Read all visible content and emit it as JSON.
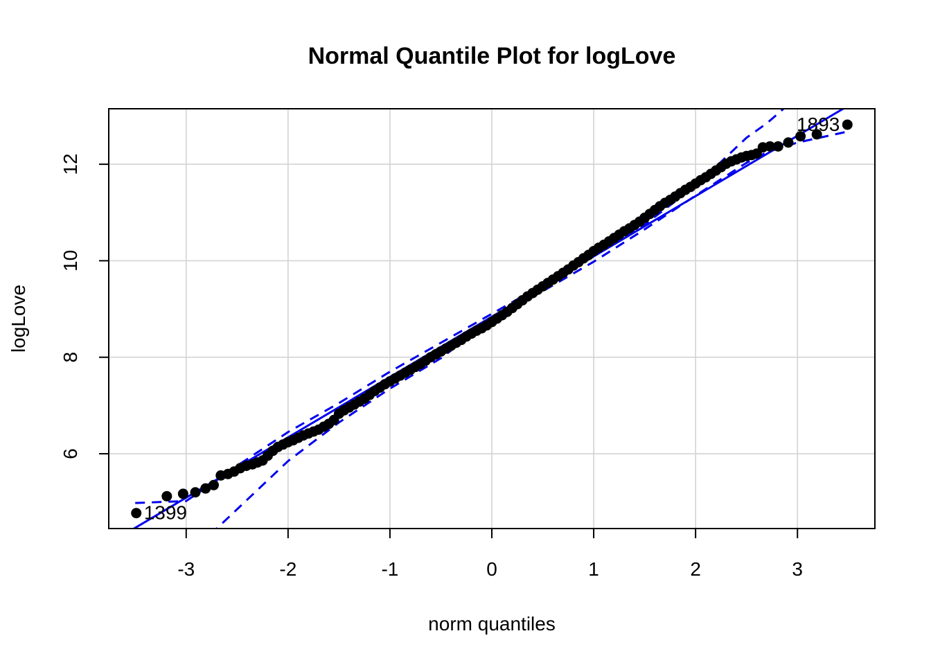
{
  "chart_data": {
    "type": "scatter",
    "title": "Normal Quantile Plot for logLove",
    "xlabel": "norm quantiles",
    "ylabel": "logLove",
    "xlim": [
      -3.76,
      3.76
    ],
    "ylim": [
      4.45,
      13.15
    ],
    "x_ticks": [
      -3,
      -2,
      -1,
      0,
      1,
      2,
      3
    ],
    "y_ticks": [
      6,
      8,
      10,
      12
    ],
    "grid": true,
    "colors": {
      "points": "#000000",
      "reference_line": "#0000ee",
      "envelope": "#0000ee",
      "grid": "#d3d3d3"
    },
    "reference_line": {
      "intercept": 8.84,
      "slope": 1.25
    },
    "envelope": {
      "x": [
        -3.5,
        -3.0,
        -2.7,
        -2.5,
        -2.0,
        -1.5,
        -1.0,
        -0.5,
        0.0,
        0.5,
        1.0,
        1.5,
        2.0,
        2.5,
        2.7,
        3.0,
        3.5
      ],
      "upper": [
        4.98,
        5.02,
        5.45,
        5.75,
        6.45,
        7.05,
        7.7,
        8.3,
        8.9,
        9.5,
        10.1,
        10.75,
        11.55,
        12.55,
        12.85,
        13.4,
        14.2
      ],
      "lower": [
        3.0,
        3.7,
        4.45,
        4.85,
        5.85,
        6.65,
        7.35,
        7.98,
        8.78,
        9.37,
        9.98,
        10.65,
        11.35,
        12.03,
        12.25,
        12.45,
        12.68
      ]
    },
    "points": [
      {
        "x": -3.49,
        "y": 4.77,
        "label": "1399"
      },
      {
        "x": -3.19,
        "y": 5.12
      },
      {
        "x": -3.03,
        "y": 5.17
      },
      {
        "x": -2.91,
        "y": 5.2
      },
      {
        "x": -2.81,
        "y": 5.28
      },
      {
        "x": -2.73,
        "y": 5.35
      },
      {
        "x": -2.66,
        "y": 5.55
      },
      {
        "x": -2.59,
        "y": 5.58
      },
      {
        "x": -2.53,
        "y": 5.63
      },
      {
        "x": -2.47,
        "y": 5.7
      },
      {
        "x": -2.41,
        "y": 5.75
      },
      {
        "x": -2.35,
        "y": 5.78
      },
      {
        "x": -2.3,
        "y": 5.82
      },
      {
        "x": -2.25,
        "y": 5.86
      },
      {
        "x": -2.2,
        "y": 5.96
      },
      {
        "x": -2.15,
        "y": 6.06
      },
      {
        "x": -2.1,
        "y": 6.14
      },
      {
        "x": -2.05,
        "y": 6.19
      },
      {
        "x": -2.0,
        "y": 6.24
      },
      {
        "x": -1.95,
        "y": 6.28
      },
      {
        "x": -1.9,
        "y": 6.33
      },
      {
        "x": -1.85,
        "y": 6.38
      },
      {
        "x": -1.8,
        "y": 6.42
      },
      {
        "x": -1.75,
        "y": 6.46
      },
      {
        "x": -1.7,
        "y": 6.5
      },
      {
        "x": -1.65,
        "y": 6.56
      },
      {
        "x": -1.6,
        "y": 6.62
      },
      {
        "x": -1.55,
        "y": 6.7
      },
      {
        "x": -1.5,
        "y": 6.83
      },
      {
        "x": -1.45,
        "y": 6.9
      },
      {
        "x": -1.4,
        "y": 6.96
      },
      {
        "x": -1.35,
        "y": 7.02
      },
      {
        "x": -1.3,
        "y": 7.08
      },
      {
        "x": -1.25,
        "y": 7.14
      },
      {
        "x": -1.2,
        "y": 7.22
      },
      {
        "x": -1.15,
        "y": 7.3
      },
      {
        "x": -1.1,
        "y": 7.37
      },
      {
        "x": -1.05,
        "y": 7.44
      },
      {
        "x": -1.0,
        "y": 7.5
      },
      {
        "x": -0.95,
        "y": 7.56
      },
      {
        "x": -0.9,
        "y": 7.62
      },
      {
        "x": -0.85,
        "y": 7.68
      },
      {
        "x": -0.8,
        "y": 7.74
      },
      {
        "x": -0.75,
        "y": 7.8
      },
      {
        "x": -0.7,
        "y": 7.86
      },
      {
        "x": -0.65,
        "y": 7.93
      },
      {
        "x": -0.6,
        "y": 8.0
      },
      {
        "x": -0.55,
        "y": 8.06
      },
      {
        "x": -0.5,
        "y": 8.12
      },
      {
        "x": -0.45,
        "y": 8.18
      },
      {
        "x": -0.4,
        "y": 8.24
      },
      {
        "x": -0.35,
        "y": 8.3
      },
      {
        "x": -0.3,
        "y": 8.36
      },
      {
        "x": -0.25,
        "y": 8.43
      },
      {
        "x": -0.2,
        "y": 8.49
      },
      {
        "x": -0.15,
        "y": 8.55
      },
      {
        "x": -0.1,
        "y": 8.6
      },
      {
        "x": -0.05,
        "y": 8.66
      },
      {
        "x": 0.0,
        "y": 8.73
      },
      {
        "x": 0.05,
        "y": 8.8
      },
      {
        "x": 0.1,
        "y": 8.87
      },
      {
        "x": 0.15,
        "y": 8.94
      },
      {
        "x": 0.2,
        "y": 9.02
      },
      {
        "x": 0.25,
        "y": 9.1
      },
      {
        "x": 0.3,
        "y": 9.18
      },
      {
        "x": 0.35,
        "y": 9.26
      },
      {
        "x": 0.4,
        "y": 9.33
      },
      {
        "x": 0.45,
        "y": 9.4
      },
      {
        "x": 0.5,
        "y": 9.47
      },
      {
        "x": 0.55,
        "y": 9.54
      },
      {
        "x": 0.6,
        "y": 9.61
      },
      {
        "x": 0.65,
        "y": 9.68
      },
      {
        "x": 0.7,
        "y": 9.75
      },
      {
        "x": 0.75,
        "y": 9.82
      },
      {
        "x": 0.8,
        "y": 9.9
      },
      {
        "x": 0.85,
        "y": 9.97
      },
      {
        "x": 0.9,
        "y": 10.05
      },
      {
        "x": 0.95,
        "y": 10.12
      },
      {
        "x": 1.0,
        "y": 10.2
      },
      {
        "x": 1.05,
        "y": 10.27
      },
      {
        "x": 1.1,
        "y": 10.33
      },
      {
        "x": 1.15,
        "y": 10.4
      },
      {
        "x": 1.2,
        "y": 10.47
      },
      {
        "x": 1.25,
        "y": 10.54
      },
      {
        "x": 1.3,
        "y": 10.61
      },
      {
        "x": 1.35,
        "y": 10.67
      },
      {
        "x": 1.4,
        "y": 10.74
      },
      {
        "x": 1.45,
        "y": 10.81
      },
      {
        "x": 1.5,
        "y": 10.89
      },
      {
        "x": 1.55,
        "y": 10.97
      },
      {
        "x": 1.6,
        "y": 11.05
      },
      {
        "x": 1.65,
        "y": 11.13
      },
      {
        "x": 1.7,
        "y": 11.2
      },
      {
        "x": 1.75,
        "y": 11.26
      },
      {
        "x": 1.8,
        "y": 11.33
      },
      {
        "x": 1.85,
        "y": 11.4
      },
      {
        "x": 1.9,
        "y": 11.47
      },
      {
        "x": 1.95,
        "y": 11.53
      },
      {
        "x": 2.0,
        "y": 11.6
      },
      {
        "x": 2.05,
        "y": 11.67
      },
      {
        "x": 2.1,
        "y": 11.73
      },
      {
        "x": 2.15,
        "y": 11.8
      },
      {
        "x": 2.2,
        "y": 11.87
      },
      {
        "x": 2.25,
        "y": 11.94
      },
      {
        "x": 2.3,
        "y": 12.01
      },
      {
        "x": 2.35,
        "y": 12.06
      },
      {
        "x": 2.4,
        "y": 12.1
      },
      {
        "x": 2.45,
        "y": 12.14
      },
      {
        "x": 2.5,
        "y": 12.17
      },
      {
        "x": 2.55,
        "y": 12.19
      },
      {
        "x": 2.6,
        "y": 12.22
      },
      {
        "x": 2.66,
        "y": 12.35
      },
      {
        "x": 2.73,
        "y": 12.37
      },
      {
        "x": 2.81,
        "y": 12.37
      },
      {
        "x": 2.91,
        "y": 12.45
      },
      {
        "x": 3.03,
        "y": 12.58
      },
      {
        "x": 3.19,
        "y": 12.62
      },
      {
        "x": 3.49,
        "y": 12.82,
        "label": "1893"
      }
    ]
  }
}
